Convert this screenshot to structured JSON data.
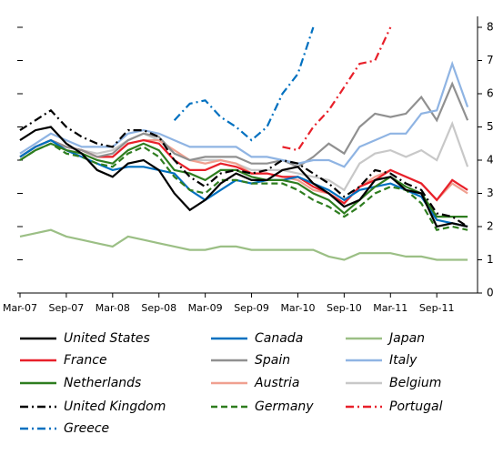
{
  "chart_data": {
    "type": "line",
    "categories": [
      "Mar-07",
      null,
      null,
      "Sep-07",
      null,
      null,
      "Mar-08",
      null,
      null,
      "Sep-08",
      null,
      null,
      "Mar-09",
      null,
      null,
      "Sep-09",
      null,
      null,
      "Mar-10",
      null,
      null,
      "Sep-10",
      null,
      null,
      "Mar-11",
      null,
      null,
      "Sep-11",
      null,
      null
    ],
    "ylim": [
      0,
      8
    ],
    "yticks": [
      0,
      1,
      2,
      3,
      4,
      5,
      6,
      7,
      8
    ],
    "y_axis_side": "right",
    "series": [
      {
        "name": "United States",
        "color": "#000000",
        "dash": "solid",
        "values": [
          4.6,
          4.9,
          5.0,
          4.5,
          4.2,
          3.7,
          3.5,
          3.9,
          4.0,
          3.7,
          3.0,
          2.5,
          2.8,
          3.3,
          3.6,
          3.4,
          3.4,
          3.7,
          3.8,
          3.3,
          3.0,
          2.6,
          2.8,
          3.4,
          3.5,
          3.1,
          3.0,
          2.0,
          2.1,
          2.0
        ]
      },
      {
        "name": "Canada",
        "color": "#0070c0",
        "dash": "solid",
        "values": [
          4.1,
          4.4,
          4.6,
          4.3,
          4.1,
          3.9,
          3.7,
          3.8,
          3.8,
          3.7,
          3.6,
          3.1,
          2.8,
          3.1,
          3.4,
          3.3,
          3.4,
          3.4,
          3.5,
          3.3,
          3.1,
          2.8,
          3.1,
          3.2,
          3.3,
          3.1,
          2.9,
          2.2,
          2.1,
          2.0
        ]
      },
      {
        "name": "Japan",
        "color": "#9bbf85",
        "dash": "solid",
        "values": [
          1.7,
          1.8,
          1.9,
          1.7,
          1.6,
          1.5,
          1.4,
          1.7,
          1.6,
          1.5,
          1.4,
          1.3,
          1.3,
          1.4,
          1.4,
          1.3,
          1.3,
          1.3,
          1.3,
          1.3,
          1.1,
          1.0,
          1.2,
          1.2,
          1.2,
          1.1,
          1.1,
          1.0,
          1.0,
          1.0
        ]
      },
      {
        "name": "France",
        "color": "#e8202a",
        "dash": "solid",
        "values": [
          4.1,
          4.4,
          4.6,
          4.4,
          4.3,
          4.1,
          4.1,
          4.5,
          4.6,
          4.5,
          4.0,
          3.7,
          3.7,
          3.9,
          3.8,
          3.6,
          3.6,
          3.5,
          3.5,
          3.2,
          3.0,
          2.7,
          3.2,
          3.4,
          3.7,
          3.5,
          3.3,
          2.8,
          3.4,
          3.1
        ]
      },
      {
        "name": "Spain",
        "color": "#909090",
        "dash": "solid",
        "values": [
          4.1,
          4.4,
          4.6,
          4.4,
          4.3,
          4.1,
          4.2,
          4.6,
          4.8,
          4.7,
          4.2,
          4.0,
          4.1,
          4.1,
          4.1,
          3.9,
          3.9,
          4.0,
          3.8,
          4.1,
          4.5,
          4.2,
          5.0,
          5.4,
          5.3,
          5.4,
          5.9,
          5.2,
          6.3,
          5.2
        ]
      },
      {
        "name": "Italy",
        "color": "#8fb4e3",
        "dash": "solid",
        "values": [
          4.2,
          4.5,
          4.8,
          4.6,
          4.4,
          4.4,
          4.4,
          4.8,
          4.9,
          4.8,
          4.6,
          4.4,
          4.4,
          4.4,
          4.4,
          4.1,
          4.1,
          4.0,
          3.9,
          4.0,
          4.0,
          3.8,
          4.4,
          4.6,
          4.8,
          4.8,
          5.4,
          5.5,
          6.9,
          5.6
        ]
      },
      {
        "name": "Netherlands",
        "color": "#2e7d1f",
        "dash": "solid",
        "values": [
          4.0,
          4.3,
          4.5,
          4.3,
          4.2,
          4.0,
          3.9,
          4.3,
          4.5,
          4.3,
          3.7,
          3.6,
          3.4,
          3.7,
          3.7,
          3.5,
          3.4,
          3.4,
          3.3,
          3.0,
          2.8,
          2.4,
          2.8,
          3.2,
          3.5,
          3.2,
          3.0,
          2.3,
          2.3,
          2.3
        ]
      },
      {
        "name": "Austria",
        "color": "#f0a090",
        "dash": "solid",
        "values": [
          4.1,
          4.4,
          4.6,
          4.4,
          4.3,
          4.1,
          4.1,
          4.5,
          4.6,
          4.6,
          4.3,
          4.0,
          3.9,
          4.0,
          3.9,
          3.6,
          3.6,
          3.5,
          3.4,
          3.1,
          3.0,
          2.7,
          3.2,
          3.5,
          3.7,
          3.5,
          3.3,
          2.8,
          3.3,
          3.0
        ]
      },
      {
        "name": "Belgium",
        "color": "#c8c8c8",
        "dash": "solid",
        "values": [
          4.1,
          4.4,
          4.6,
          4.4,
          4.3,
          4.2,
          4.3,
          4.6,
          4.8,
          4.6,
          4.2,
          4.0,
          4.0,
          4.0,
          3.9,
          3.7,
          3.7,
          3.7,
          3.6,
          3.5,
          3.4,
          3.1,
          3.9,
          4.2,
          4.3,
          4.1,
          4.3,
          4.0,
          5.1,
          3.8
        ]
      },
      {
        "name": "United Kingdom",
        "color": "#000000",
        "dash": "dashdot",
        "values": [
          4.9,
          5.2,
          5.5,
          5.0,
          4.7,
          4.5,
          4.4,
          4.9,
          4.9,
          4.7,
          4.0,
          3.5,
          3.2,
          3.6,
          3.7,
          3.6,
          3.7,
          4.0,
          3.9,
          3.6,
          3.3,
          2.9,
          3.2,
          3.7,
          3.6,
          3.3,
          3.1,
          2.4,
          2.3,
          2.0
        ]
      },
      {
        "name": "Germany",
        "color": "#2e7d1f",
        "dash": "dash",
        "values": [
          4.0,
          4.3,
          4.5,
          4.2,
          4.1,
          3.9,
          3.8,
          4.2,
          4.4,
          4.1,
          3.5,
          3.1,
          3.0,
          3.4,
          3.4,
          3.3,
          3.3,
          3.3,
          3.1,
          2.8,
          2.6,
          2.3,
          2.6,
          3.0,
          3.2,
          3.1,
          2.7,
          1.9,
          2.0,
          1.9
        ]
      },
      {
        "name": "Portugal",
        "color": "#e8202a",
        "dash": "dashdot",
        "values": [
          null,
          null,
          null,
          null,
          null,
          null,
          null,
          null,
          null,
          null,
          null,
          null,
          null,
          null,
          null,
          null,
          null,
          4.4,
          4.3,
          5.0,
          5.5,
          6.2,
          6.9,
          7.0,
          8.0,
          null,
          null,
          null,
          null,
          null
        ]
      },
      {
        "name": "Greece",
        "color": "#0070c0",
        "dash": "dashdot",
        "values": [
          null,
          null,
          null,
          null,
          null,
          null,
          null,
          null,
          null,
          null,
          5.2,
          5.7,
          5.8,
          5.3,
          5.0,
          4.6,
          5.0,
          6.0,
          6.6,
          8.0,
          null,
          null,
          null,
          null,
          null,
          null,
          null,
          null,
          null,
          null
        ]
      }
    ]
  }
}
